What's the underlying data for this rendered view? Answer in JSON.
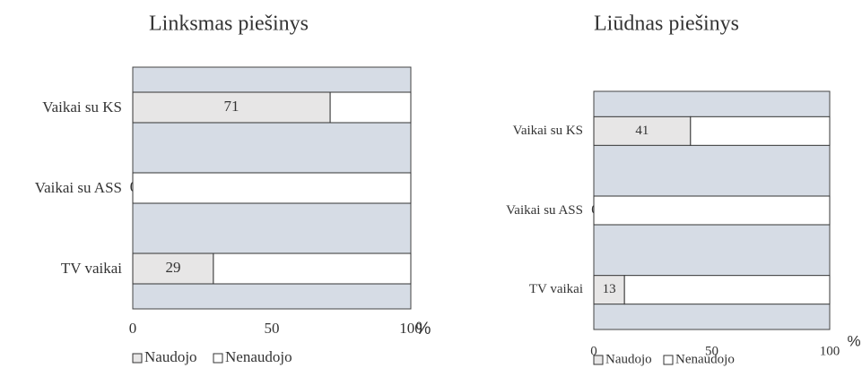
{
  "chart_data": [
    {
      "type": "bar",
      "orientation": "horizontal",
      "stacked": true,
      "title": "Linksmas piešinys",
      "categories": [
        "Vaikai su KS",
        "Vaikai su ASS",
        "TV vaikai"
      ],
      "series": [
        {
          "name": "Naudojo",
          "color": "#e7e6e6",
          "values": [
            71,
            0,
            29
          ],
          "show_labels": true
        },
        {
          "name": "Nenaudojo",
          "color": "#ffffff",
          "values": [
            29,
            100,
            71
          ]
        }
      ],
      "xlim": [
        0,
        100
      ],
      "xticks": [
        0,
        50,
        100
      ],
      "xlabel": "%",
      "plot_background": "#d6dce5",
      "legend": "bottom"
    },
    {
      "type": "bar",
      "orientation": "horizontal",
      "stacked": true,
      "title": "Liūdnas piešinys",
      "categories": [
        "Vaikai su KS",
        "Vaikai su ASS",
        "TV vaikai"
      ],
      "series": [
        {
          "name": "Naudojo",
          "color": "#e7e6e6",
          "values": [
            41,
            0,
            13
          ],
          "show_labels": true
        },
        {
          "name": "Nenaudojo",
          "color": "#ffffff",
          "values": [
            59,
            100,
            87
          ]
        }
      ],
      "xlim": [
        0,
        100
      ],
      "xticks": [
        0,
        50,
        100
      ],
      "xlabel": "%",
      "plot_background": "#d6dce5",
      "legend": "bottom"
    }
  ]
}
